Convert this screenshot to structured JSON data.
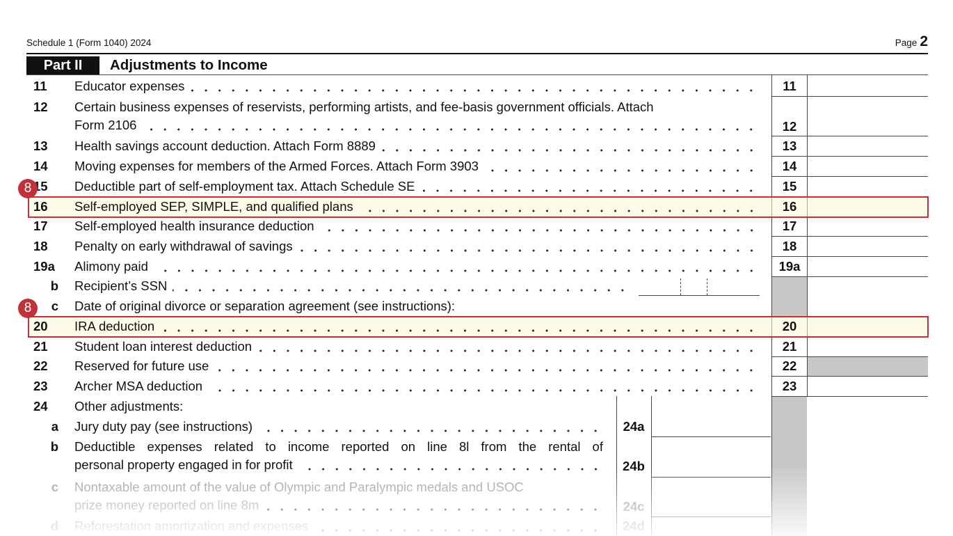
{
  "header": {
    "form": "Schedule 1 (Form 1040) 2024",
    "page_label": "Page",
    "page_number": "2"
  },
  "part": {
    "label": "Part II",
    "title": "Adjustments to Income"
  },
  "lines": [
    {
      "number": "11",
      "text": [
        "Educator expenses"
      ],
      "box": "11"
    },
    {
      "number": "12",
      "text": [
        "Certain business expenses of reservists, performing artists, and fee-basis government officials. Attach",
        "Form 2106"
      ],
      "box": "12"
    },
    {
      "number": "13",
      "text": [
        "Health savings account deduction. Attach Form 8889"
      ],
      "box": "13"
    },
    {
      "number": "14",
      "text": [
        "Moving expenses for members of the Armed Forces. Attach Form 3903"
      ],
      "box": "14"
    },
    {
      "number": "15",
      "text": [
        "Deductible part of self-employment tax. Attach Schedule SE"
      ],
      "box": "15"
    },
    {
      "number": "16",
      "text": [
        "Self-employed SEP, SIMPLE, and qualified plans"
      ],
      "box": "16"
    },
    {
      "number": "17",
      "text": [
        "Self-employed health insurance deduction"
      ],
      "box": "17"
    },
    {
      "number": "18",
      "text": [
        "Penalty on early withdrawal of savings"
      ],
      "box": "18"
    },
    {
      "number": "19a",
      "text": [
        "Alimony paid"
      ],
      "box": "19a"
    },
    {
      "number": "b",
      "text": [
        "Recipient’s SSN"
      ]
    },
    {
      "number": "c",
      "text": [
        "Date of original divorce or separation agreement (see instructions):"
      ]
    },
    {
      "number": "20",
      "text": [
        "IRA deduction"
      ],
      "box": "20"
    },
    {
      "number": "21",
      "text": [
        "Student loan interest deduction"
      ],
      "box": "21"
    },
    {
      "number": "22",
      "text": [
        "Reserved for future use"
      ],
      "box": "22"
    },
    {
      "number": "23",
      "text": [
        "Archer MSA deduction"
      ],
      "box": "23"
    },
    {
      "number": "24",
      "text": [
        "Other adjustments:"
      ]
    },
    {
      "number": "a",
      "text": [
        "Jury duty pay (see instructions)"
      ],
      "box": "24a"
    },
    {
      "number": "b",
      "text": [
        "Deductible expenses related to income reported on line 8l from the rental of",
        "personal property engaged in for profit"
      ],
      "box": "24b"
    },
    {
      "number": "c",
      "text": [
        "Nontaxable amount of the value of Olympic and Paralympic medals and USOC",
        "prize money reported on line 8m"
      ],
      "box": "24c"
    },
    {
      "number": "d",
      "text": [
        "Reforestation amortization and expenses"
      ],
      "box": "24d"
    }
  ],
  "callouts": [
    "8",
    "8"
  ]
}
